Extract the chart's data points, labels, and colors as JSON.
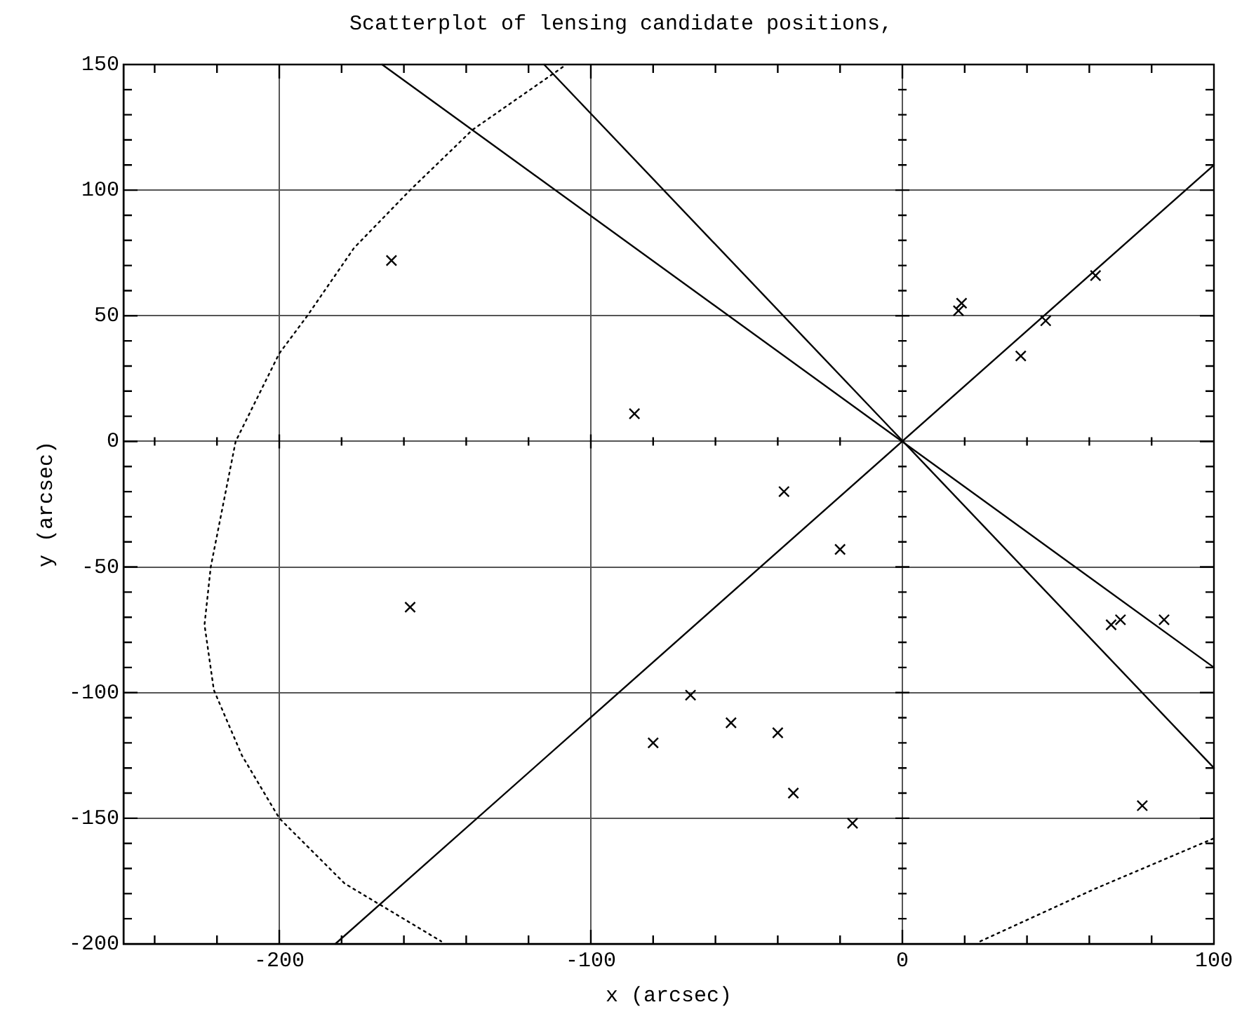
{
  "chart_data": {
    "type": "scatter",
    "title": "Scatterplot of lensing candidate positions,",
    "xlabel": "x (arcsec)",
    "ylabel": "y (arcsec)",
    "xlim": [
      -250,
      100
    ],
    "ylim": [
      -200,
      150
    ],
    "xticks": [
      {
        "value": -240,
        "label": null
      },
      {
        "value": -220,
        "label": null
      },
      -200,
      {
        "value": -180,
        "label": null
      },
      {
        "value": -160,
        "label": null
      },
      {
        "value": -140,
        "label": null
      },
      {
        "value": -120,
        "label": null
      },
      -100,
      {
        "value": -80,
        "label": null
      },
      {
        "value": -60,
        "label": null
      },
      {
        "value": -40,
        "label": null
      },
      {
        "value": -20,
        "label": null
      },
      0,
      {
        "value": 20,
        "label": null
      },
      {
        "value": 40,
        "label": null
      },
      {
        "value": 60,
        "label": null
      },
      {
        "value": 80,
        "label": null
      },
      100
    ],
    "yticks": [
      -200,
      {
        "value": -190,
        "label": null
      },
      {
        "value": -180,
        "label": null
      },
      {
        "value": -170,
        "label": null
      },
      {
        "value": -160,
        "label": null
      },
      -150,
      {
        "value": -140,
        "label": null
      },
      {
        "value": -130,
        "label": null
      },
      {
        "value": -120,
        "label": null
      },
      {
        "value": -110,
        "label": null
      },
      -100,
      {
        "value": -90,
        "label": null
      },
      {
        "value": -80,
        "label": null
      },
      {
        "value": -70,
        "label": null
      },
      {
        "value": -60,
        "label": null
      },
      -50,
      {
        "value": -40,
        "label": null
      },
      {
        "value": -30,
        "label": null
      },
      {
        "value": -20,
        "label": null
      },
      {
        "value": -10,
        "label": null
      },
      0,
      {
        "value": 10,
        "label": null
      },
      {
        "value": 20,
        "label": null
      },
      {
        "value": 30,
        "label": null
      },
      {
        "value": 40,
        "label": null
      },
      50,
      {
        "value": 60,
        "label": null
      },
      {
        "value": 70,
        "label": null
      },
      {
        "value": 80,
        "label": null
      },
      {
        "value": 90,
        "label": null
      },
      100,
      {
        "value": 110,
        "label": null
      },
      {
        "value": 120,
        "label": null
      },
      {
        "value": 130,
        "label": null
      },
      {
        "value": 140,
        "label": null
      },
      150
    ],
    "grid": true,
    "legend": false,
    "series": [
      {
        "type": "scatter",
        "color": "#000000",
        "marker": "cross",
        "x": [
          -164,
          -86,
          -158,
          -38,
          -20,
          -68,
          -55,
          -40,
          -80,
          -35,
          -16,
          19,
          18,
          46,
          38,
          62,
          67,
          70,
          84,
          77
        ],
        "values": [
          72,
          11,
          -66,
          -20,
          -43,
          -101,
          -112,
          -116,
          -120,
          -140,
          -152,
          55,
          52,
          48,
          34,
          66,
          -73,
          -71,
          -71,
          -145
        ]
      },
      {
        "type": "line",
        "color": "#000000",
        "marker": "none",
        "line_style": "solid",
        "x": [
          -115,
          100
        ],
        "values": [
          150,
          -130
        ]
      },
      {
        "type": "line",
        "color": "#000000",
        "marker": "none",
        "line_style": "solid",
        "x": [
          -167,
          100
        ],
        "values": [
          150,
          -90
        ]
      },
      {
        "type": "line",
        "color": "#000000",
        "marker": "none",
        "line_style": "solid",
        "x": [
          -182,
          100
        ],
        "values": [
          -200,
          110
        ]
      },
      {
        "type": "line",
        "color": "#000000",
        "marker": "none",
        "line_style": "dotted",
        "x": [
          -109,
          -138,
          -158,
          -176,
          -191,
          -200,
          -214,
          -222,
          -224,
          -221,
          -212,
          -200,
          -179,
          -148
        ],
        "values": [
          149,
          124,
          100,
          77,
          50,
          35,
          0,
          -50,
          -73,
          -99,
          -125,
          -150,
          -176,
          -199
        ]
      },
      {
        "type": "line",
        "color": "#000000",
        "marker": "none",
        "line_style": "dotted",
        "x": [
          25,
          62,
          100
        ],
        "values": [
          -199,
          -178,
          -158
        ]
      }
    ]
  }
}
